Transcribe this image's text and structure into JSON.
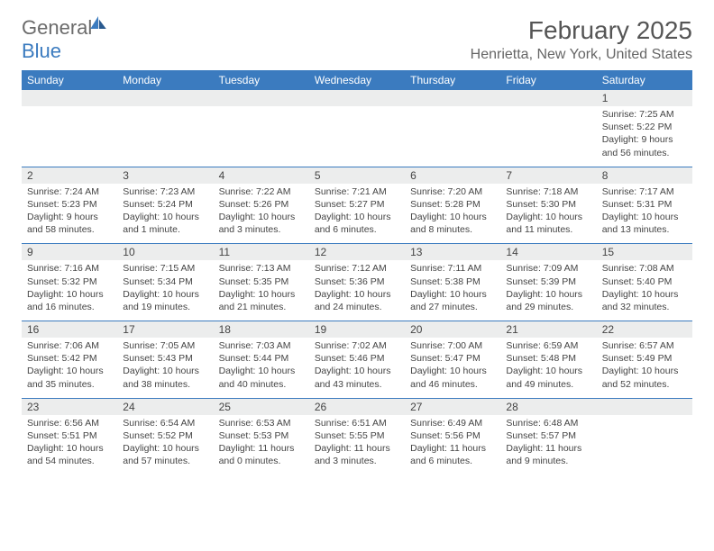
{
  "brand": {
    "word1": "General",
    "word2": "Blue",
    "accent_color": "#3b7bbf",
    "gray_color": "#6b6b6b"
  },
  "title": "February 2025",
  "location": "Henrietta, New York, United States",
  "colors": {
    "header_bg": "#3b7bbf",
    "header_fg": "#ffffff",
    "daynum_bg": "#eceded",
    "text": "#444444",
    "rule": "#3b7bbf",
    "page_bg": "#ffffff"
  },
  "fonts": {
    "title_size": 28,
    "location_size": 16,
    "dayhead_size": 12,
    "cell_size": 10.5
  },
  "day_headers": [
    "Sunday",
    "Monday",
    "Tuesday",
    "Wednesday",
    "Thursday",
    "Friday",
    "Saturday"
  ],
  "weeks": [
    [
      {
        "n": "",
        "l1": "",
        "l2": "",
        "l3": "",
        "l4": ""
      },
      {
        "n": "",
        "l1": "",
        "l2": "",
        "l3": "",
        "l4": ""
      },
      {
        "n": "",
        "l1": "",
        "l2": "",
        "l3": "",
        "l4": ""
      },
      {
        "n": "",
        "l1": "",
        "l2": "",
        "l3": "",
        "l4": ""
      },
      {
        "n": "",
        "l1": "",
        "l2": "",
        "l3": "",
        "l4": ""
      },
      {
        "n": "",
        "l1": "",
        "l2": "",
        "l3": "",
        "l4": ""
      },
      {
        "n": "1",
        "l1": "Sunrise: 7:25 AM",
        "l2": "Sunset: 5:22 PM",
        "l3": "Daylight: 9 hours",
        "l4": "and 56 minutes."
      }
    ],
    [
      {
        "n": "2",
        "l1": "Sunrise: 7:24 AM",
        "l2": "Sunset: 5:23 PM",
        "l3": "Daylight: 9 hours",
        "l4": "and 58 minutes."
      },
      {
        "n": "3",
        "l1": "Sunrise: 7:23 AM",
        "l2": "Sunset: 5:24 PM",
        "l3": "Daylight: 10 hours",
        "l4": "and 1 minute."
      },
      {
        "n": "4",
        "l1": "Sunrise: 7:22 AM",
        "l2": "Sunset: 5:26 PM",
        "l3": "Daylight: 10 hours",
        "l4": "and 3 minutes."
      },
      {
        "n": "5",
        "l1": "Sunrise: 7:21 AM",
        "l2": "Sunset: 5:27 PM",
        "l3": "Daylight: 10 hours",
        "l4": "and 6 minutes."
      },
      {
        "n": "6",
        "l1": "Sunrise: 7:20 AM",
        "l2": "Sunset: 5:28 PM",
        "l3": "Daylight: 10 hours",
        "l4": "and 8 minutes."
      },
      {
        "n": "7",
        "l1": "Sunrise: 7:18 AM",
        "l2": "Sunset: 5:30 PM",
        "l3": "Daylight: 10 hours",
        "l4": "and 11 minutes."
      },
      {
        "n": "8",
        "l1": "Sunrise: 7:17 AM",
        "l2": "Sunset: 5:31 PM",
        "l3": "Daylight: 10 hours",
        "l4": "and 13 minutes."
      }
    ],
    [
      {
        "n": "9",
        "l1": "Sunrise: 7:16 AM",
        "l2": "Sunset: 5:32 PM",
        "l3": "Daylight: 10 hours",
        "l4": "and 16 minutes."
      },
      {
        "n": "10",
        "l1": "Sunrise: 7:15 AM",
        "l2": "Sunset: 5:34 PM",
        "l3": "Daylight: 10 hours",
        "l4": "and 19 minutes."
      },
      {
        "n": "11",
        "l1": "Sunrise: 7:13 AM",
        "l2": "Sunset: 5:35 PM",
        "l3": "Daylight: 10 hours",
        "l4": "and 21 minutes."
      },
      {
        "n": "12",
        "l1": "Sunrise: 7:12 AM",
        "l2": "Sunset: 5:36 PM",
        "l3": "Daylight: 10 hours",
        "l4": "and 24 minutes."
      },
      {
        "n": "13",
        "l1": "Sunrise: 7:11 AM",
        "l2": "Sunset: 5:38 PM",
        "l3": "Daylight: 10 hours",
        "l4": "and 27 minutes."
      },
      {
        "n": "14",
        "l1": "Sunrise: 7:09 AM",
        "l2": "Sunset: 5:39 PM",
        "l3": "Daylight: 10 hours",
        "l4": "and 29 minutes."
      },
      {
        "n": "15",
        "l1": "Sunrise: 7:08 AM",
        "l2": "Sunset: 5:40 PM",
        "l3": "Daylight: 10 hours",
        "l4": "and 32 minutes."
      }
    ],
    [
      {
        "n": "16",
        "l1": "Sunrise: 7:06 AM",
        "l2": "Sunset: 5:42 PM",
        "l3": "Daylight: 10 hours",
        "l4": "and 35 minutes."
      },
      {
        "n": "17",
        "l1": "Sunrise: 7:05 AM",
        "l2": "Sunset: 5:43 PM",
        "l3": "Daylight: 10 hours",
        "l4": "and 38 minutes."
      },
      {
        "n": "18",
        "l1": "Sunrise: 7:03 AM",
        "l2": "Sunset: 5:44 PM",
        "l3": "Daylight: 10 hours",
        "l4": "and 40 minutes."
      },
      {
        "n": "19",
        "l1": "Sunrise: 7:02 AM",
        "l2": "Sunset: 5:46 PM",
        "l3": "Daylight: 10 hours",
        "l4": "and 43 minutes."
      },
      {
        "n": "20",
        "l1": "Sunrise: 7:00 AM",
        "l2": "Sunset: 5:47 PM",
        "l3": "Daylight: 10 hours",
        "l4": "and 46 minutes."
      },
      {
        "n": "21",
        "l1": "Sunrise: 6:59 AM",
        "l2": "Sunset: 5:48 PM",
        "l3": "Daylight: 10 hours",
        "l4": "and 49 minutes."
      },
      {
        "n": "22",
        "l1": "Sunrise: 6:57 AM",
        "l2": "Sunset: 5:49 PM",
        "l3": "Daylight: 10 hours",
        "l4": "and 52 minutes."
      }
    ],
    [
      {
        "n": "23",
        "l1": "Sunrise: 6:56 AM",
        "l2": "Sunset: 5:51 PM",
        "l3": "Daylight: 10 hours",
        "l4": "and 54 minutes."
      },
      {
        "n": "24",
        "l1": "Sunrise: 6:54 AM",
        "l2": "Sunset: 5:52 PM",
        "l3": "Daylight: 10 hours",
        "l4": "and 57 minutes."
      },
      {
        "n": "25",
        "l1": "Sunrise: 6:53 AM",
        "l2": "Sunset: 5:53 PM",
        "l3": "Daylight: 11 hours",
        "l4": "and 0 minutes."
      },
      {
        "n": "26",
        "l1": "Sunrise: 6:51 AM",
        "l2": "Sunset: 5:55 PM",
        "l3": "Daylight: 11 hours",
        "l4": "and 3 minutes."
      },
      {
        "n": "27",
        "l1": "Sunrise: 6:49 AM",
        "l2": "Sunset: 5:56 PM",
        "l3": "Daylight: 11 hours",
        "l4": "and 6 minutes."
      },
      {
        "n": "28",
        "l1": "Sunrise: 6:48 AM",
        "l2": "Sunset: 5:57 PM",
        "l3": "Daylight: 11 hours",
        "l4": "and 9 minutes."
      },
      {
        "n": "",
        "l1": "",
        "l2": "",
        "l3": "",
        "l4": ""
      }
    ]
  ]
}
